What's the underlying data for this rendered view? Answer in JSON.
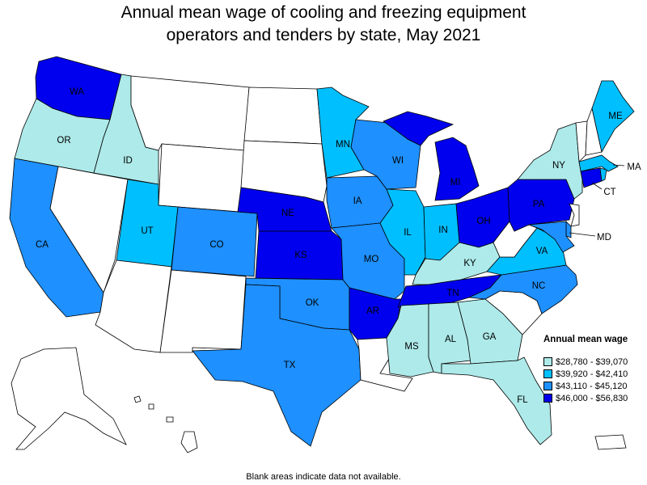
{
  "title_line1": "Annual mean wage of cooling and freezing equipment",
  "title_line2": "operators and tenders by state, May 2021",
  "legend": {
    "title": "Annual mean wage",
    "items": [
      {
        "label": "$28,780 - $39,070",
        "color": "#aeeaea"
      },
      {
        "label": "$39,920 - $42,410",
        "color": "#00bfff"
      },
      {
        "label": "$43,110 - $45,120",
        "color": "#1e90ff"
      },
      {
        "label": "$46,000 - $56,830",
        "color": "#0000ee"
      }
    ]
  },
  "no_data_color": "#ffffff",
  "footnote": "Blank areas indicate data not available.",
  "states": {
    "WA": {
      "label": "WA",
      "bin": 3
    },
    "OR": {
      "label": "OR",
      "bin": 0
    },
    "CA": {
      "label": "CA",
      "bin": 2
    },
    "ID": {
      "label": "ID",
      "bin": 0
    },
    "NV": {
      "label": "",
      "bin": null
    },
    "MT": {
      "label": "",
      "bin": null
    },
    "WY": {
      "label": "",
      "bin": null
    },
    "UT": {
      "label": "UT",
      "bin": 1
    },
    "AZ": {
      "label": "",
      "bin": null
    },
    "CO": {
      "label": "CO",
      "bin": 2
    },
    "NM": {
      "label": "",
      "bin": null
    },
    "ND": {
      "label": "",
      "bin": null
    },
    "SD": {
      "label": "",
      "bin": null
    },
    "NE": {
      "label": "NE",
      "bin": 3
    },
    "KS": {
      "label": "KS",
      "bin": 3
    },
    "OK": {
      "label": "OK",
      "bin": 2
    },
    "TX": {
      "label": "TX",
      "bin": 2
    },
    "MN": {
      "label": "MN",
      "bin": 1
    },
    "IA": {
      "label": "IA",
      "bin": 2
    },
    "MO": {
      "label": "MO",
      "bin": 2
    },
    "AR": {
      "label": "AR",
      "bin": 3
    },
    "LA": {
      "label": "",
      "bin": null
    },
    "WI": {
      "label": "WI",
      "bin": 2
    },
    "IL": {
      "label": "IL",
      "bin": 1
    },
    "MI": {
      "label": "MI",
      "bin": 3
    },
    "IN": {
      "label": "IN",
      "bin": 1
    },
    "OH": {
      "label": "OH",
      "bin": 3
    },
    "KY": {
      "label": "KY",
      "bin": 0
    },
    "TN": {
      "label": "TN",
      "bin": 3
    },
    "MS": {
      "label": "MS",
      "bin": 0
    },
    "AL": {
      "label": "AL",
      "bin": 0
    },
    "GA": {
      "label": "GA",
      "bin": 0
    },
    "FL": {
      "label": "FL",
      "bin": 0
    },
    "SC": {
      "label": "",
      "bin": null
    },
    "NC": {
      "label": "NC",
      "bin": 2
    },
    "VA": {
      "label": "VA",
      "bin": 1
    },
    "WV": {
      "label": "",
      "bin": null
    },
    "PA": {
      "label": "PA",
      "bin": 3
    },
    "NY": {
      "label": "NY",
      "bin": 0
    },
    "VT": {
      "label": "",
      "bin": null
    },
    "NH": {
      "label": "",
      "bin": null
    },
    "ME": {
      "label": "ME",
      "bin": 1
    },
    "MA": {
      "label": "MA",
      "bin": 1
    },
    "CT": {
      "label": "CT",
      "bin": 3
    },
    "RI": {
      "label": "",
      "bin": 1
    },
    "NJ": {
      "label": "",
      "bin": null
    },
    "DE": {
      "label": "",
      "bin": 2
    },
    "MD": {
      "label": "MD",
      "bin": 2
    },
    "AK": {
      "label": "",
      "bin": null
    },
    "HI": {
      "label": "",
      "bin": null
    },
    "PR": {
      "label": "",
      "bin": null
    }
  }
}
